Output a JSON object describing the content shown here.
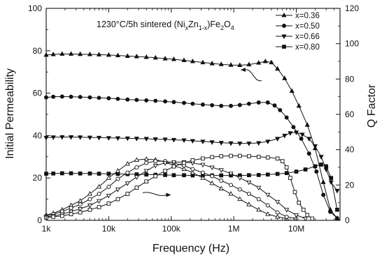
{
  "chart_data": {
    "type": "line",
    "annotation": {
      "pre": "1230°C/5h sintered   (Ni",
      "sub1": "x",
      "mid1": "Zn",
      "sub2": "1-x",
      "mid2": ")Fe",
      "sub3": "2",
      "mid3": "O",
      "sub4": "4"
    },
    "xlabel": "Frequency (Hz)",
    "ylabel_left": "Initial Permeability",
    "ylabel_right": "Q Factor",
    "xscale": "log",
    "xlim": [
      1000,
      50000000
    ],
    "ylim_left": [
      0,
      100
    ],
    "ylim_right": [
      0,
      120
    ],
    "x_ticks": [
      {
        "value": 1000,
        "label": "1k"
      },
      {
        "value": 10000,
        "label": "10k"
      },
      {
        "value": 100000,
        "label": "100k"
      },
      {
        "value": 1000000,
        "label": "1M"
      },
      {
        "value": 10000000,
        "label": "10M"
      }
    ],
    "y_ticks_left": [
      0,
      20,
      40,
      60,
      80,
      100
    ],
    "y_ticks_right": [
      0,
      20,
      40,
      60,
      80,
      100,
      120
    ],
    "grid": false,
    "legend_position": "top-right",
    "colors": {
      "line": "#111111",
      "background": "#ffffff"
    },
    "arrows": [
      {
        "points_to": "left",
        "at": [
          1500000,
          71
        ],
        "curve_to": [
          2800000,
          66
        ]
      },
      {
        "points_to": "right",
        "at": [
          35000,
          13
        ],
        "curve_to": [
          85000,
          12
        ]
      }
    ],
    "series": [
      {
        "name": "x=0.36",
        "marker": "triangle-up",
        "filled": true,
        "axis": "left",
        "x": [
          1000,
          1300,
          1800,
          2500,
          3500,
          5000,
          7000,
          10000,
          14000,
          20000,
          28000,
          40000,
          56000,
          80000,
          110000,
          160000,
          220000,
          320000,
          450000,
          630000,
          900000,
          1250000,
          1750000,
          2500000,
          3200000,
          4000000,
          5000000,
          6500000,
          8500000,
          11000000,
          15000000,
          20000000,
          27000000,
          35000000,
          45000000
        ],
        "y": [
          78,
          78.3,
          78.5,
          78.5,
          78.4,
          78.3,
          78.2,
          78,
          77.8,
          77.5,
          77.3,
          77,
          76.7,
          76.3,
          76,
          75.5,
          75,
          74.5,
          74,
          73.6,
          73.3,
          73.2,
          73.5,
          74.3,
          75,
          74.5,
          71.5,
          67,
          61,
          54,
          45,
          34,
          18,
          5,
          1
        ]
      },
      {
        "name": "x=0.50",
        "marker": "circle",
        "filled": true,
        "axis": "left",
        "x": [
          1000,
          1300,
          1800,
          2500,
          3500,
          5000,
          7000,
          10000,
          14000,
          20000,
          28000,
          40000,
          56000,
          80000,
          110000,
          160000,
          220000,
          320000,
          450000,
          630000,
          900000,
          1250000,
          1750000,
          2500000,
          3500000,
          4500000,
          5500000,
          7000000,
          9000000,
          12000000,
          16000000,
          21000000,
          27000000,
          35000000,
          45000000
        ],
        "y": [
          58,
          58.3,
          58.4,
          58.3,
          58.2,
          58,
          57.8,
          57.6,
          57.3,
          57,
          56.8,
          56.6,
          56.4,
          56.1,
          55.8,
          55.4,
          55,
          54.6,
          54.3,
          54,
          54,
          54.4,
          55,
          55.6,
          55.6,
          54.2,
          52,
          48.5,
          44,
          38.5,
          31.5,
          23,
          12,
          4,
          1
        ]
      },
      {
        "name": "x=0.66",
        "marker": "triangle-down",
        "filled": true,
        "axis": "left",
        "x": [
          1000,
          1300,
          1800,
          2500,
          3500,
          5000,
          7000,
          10000,
          14000,
          20000,
          28000,
          40000,
          56000,
          80000,
          110000,
          160000,
          220000,
          320000,
          450000,
          630000,
          900000,
          1250000,
          1750000,
          2500000,
          3500000,
          5000000,
          6500000,
          8000000,
          10000000,
          12500000,
          16000000,
          20000000,
          25000000,
          30000000,
          36000000,
          45000000
        ],
        "y": [
          39,
          39.2,
          39.3,
          39.3,
          39.2,
          39.1,
          39,
          38.9,
          38.8,
          38.7,
          38.6,
          38.5,
          38.3,
          38.2,
          38,
          37.8,
          37.5,
          37.2,
          36.9,
          36.6,
          36.4,
          36.3,
          36.3,
          36.5,
          37.2,
          38.5,
          40,
          41.2,
          41.5,
          40.5,
          38.5,
          35,
          30,
          24,
          18,
          14
        ]
      },
      {
        "name": "x=0.80",
        "marker": "square",
        "filled": true,
        "axis": "left",
        "x": [
          1000,
          1300,
          1800,
          2500,
          3500,
          5000,
          7000,
          10000,
          14000,
          20000,
          28000,
          40000,
          56000,
          80000,
          110000,
          160000,
          220000,
          320000,
          450000,
          630000,
          900000,
          1250000,
          1750000,
          2500000,
          3500000,
          5000000,
          7000000,
          10000000,
          14000000,
          20000000,
          25000000,
          30000000,
          36000000,
          45000000
        ],
        "y": [
          22,
          22.1,
          22.2,
          22.2,
          22.1,
          22.1,
          22,
          22,
          21.9,
          21.8,
          21.7,
          21.6,
          21.5,
          21.4,
          21.3,
          21.3,
          21.2,
          21.2,
          21.2,
          21.2,
          21.2,
          21.2,
          21.3,
          21.4,
          21.6,
          21.9,
          22.3,
          23,
          24,
          25.5,
          26.3,
          25.5,
          20,
          5
        ]
      },
      {
        "name": "x=0.36 Q",
        "marker": "triangle-up",
        "filled": false,
        "axis": "right",
        "x": [
          1000,
          1300,
          1800,
          2500,
          3500,
          5000,
          7000,
          10000,
          14000,
          20000,
          28000,
          40000,
          56000,
          80000,
          110000,
          160000,
          220000,
          320000,
          450000,
          630000,
          900000,
          1250000,
          1750000,
          2500000,
          3500000,
          5000000,
          7000000
        ],
        "y": [
          3,
          4,
          6,
          8.5,
          11,
          15,
          19,
          24,
          28,
          32,
          34.2,
          34.7,
          34.3,
          33,
          31,
          29,
          27,
          24,
          21,
          18,
          15,
          12,
          9,
          6,
          3.5,
          2,
          1
        ]
      },
      {
        "name": "x=0.50 Q",
        "marker": "circle",
        "filled": false,
        "axis": "right",
        "x": [
          1000,
          1300,
          1800,
          2500,
          3500,
          5000,
          7000,
          10000,
          14000,
          20000,
          28000,
          40000,
          56000,
          80000,
          110000,
          160000,
          220000,
          320000,
          450000,
          630000,
          900000,
          1250000,
          1750000,
          2500000,
          3500000,
          5000000,
          7000000,
          10000000
        ],
        "y": [
          2.5,
          3.5,
          5,
          7,
          9,
          12,
          15,
          19,
          23.5,
          27,
          30,
          32.5,
          33.5,
          33.5,
          32.5,
          31,
          29,
          27,
          25,
          22.5,
          20,
          17.5,
          15,
          12,
          8.5,
          4.5,
          2,
          1
        ]
      },
      {
        "name": "x=0.66 Q",
        "marker": "triangle-down",
        "filled": false,
        "axis": "right",
        "x": [
          1000,
          1300,
          1800,
          2500,
          3500,
          5000,
          7000,
          10000,
          14000,
          20000,
          28000,
          40000,
          56000,
          80000,
          110000,
          160000,
          220000,
          320000,
          450000,
          630000,
          900000,
          1250000,
          1750000,
          2500000,
          3500000,
          5000000,
          7000000,
          10000000,
          14000000
        ],
        "y": [
          2,
          2.5,
          3.5,
          5,
          6.5,
          8.5,
          11,
          14,
          17.5,
          21,
          24.5,
          28,
          31,
          32.5,
          33,
          33,
          32.5,
          31.5,
          30,
          28.5,
          26.5,
          24,
          21.5,
          18.5,
          14.5,
          10.5,
          6,
          3,
          1
        ]
      },
      {
        "name": "x=0.80 Q",
        "marker": "square",
        "filled": false,
        "axis": "right",
        "x": [
          1000,
          1300,
          1800,
          2500,
          3500,
          5000,
          7000,
          10000,
          14000,
          20000,
          28000,
          40000,
          56000,
          80000,
          110000,
          160000,
          220000,
          320000,
          450000,
          630000,
          900000,
          1250000,
          1750000,
          2500000,
          3500000,
          5000000,
          6000000,
          7000000,
          8000000,
          9500000,
          11000000,
          13000000,
          15000000,
          18000000
        ],
        "y": [
          1.5,
          2,
          2.5,
          3.5,
          4.5,
          6,
          7.5,
          9.5,
          12,
          15,
          18.5,
          22,
          25,
          28,
          30.5,
          32.5,
          34,
          35,
          35.8,
          36.3,
          36.5,
          36.5,
          36.3,
          36,
          35.6,
          35,
          33.5,
          30,
          24,
          16,
          10,
          6,
          3,
          1
        ]
      }
    ]
  }
}
